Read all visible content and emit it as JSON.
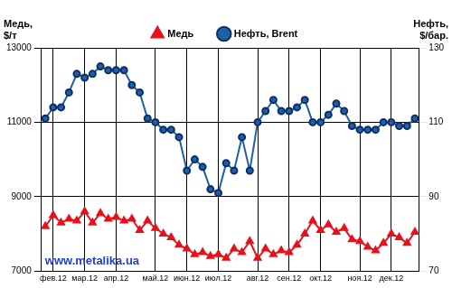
{
  "chart_data": {
    "type": "line",
    "categories": [
      null,
      "фев.12",
      null,
      null,
      null,
      "мар.12",
      null,
      null,
      null,
      "апр.12",
      null,
      null,
      null,
      null,
      "май.12",
      null,
      null,
      null,
      "июн.12",
      null,
      null,
      null,
      "июл.12",
      null,
      null,
      null,
      null,
      "авг.12",
      null,
      null,
      null,
      "сен.12",
      null,
      null,
      null,
      "окт.12",
      null,
      null,
      null,
      null,
      "ноя.12",
      null,
      null,
      null,
      "дек.12",
      null,
      null,
      null
    ],
    "series": [
      {
        "name": "Медь",
        "color": "#e8101a",
        "marker": "triangle",
        "values": [
          8200,
          8500,
          8300,
          8400,
          8350,
          8600,
          8300,
          8550,
          8400,
          8450,
          8350,
          8400,
          8100,
          8350,
          8150,
          8000,
          7900,
          7700,
          7600,
          7450,
          7500,
          7400,
          7450,
          7350,
          7600,
          7500,
          7800,
          7350,
          7600,
          7450,
          7550,
          7500,
          7700,
          8000,
          8350,
          8100,
          8250,
          8050,
          8150,
          7850,
          7800,
          7650,
          7550,
          7750,
          8000,
          7900,
          7750,
          8050
        ]
      },
      {
        "name": "Нефть, Brent",
        "color": "#1f5fa8",
        "marker": "circle",
        "axis": "y2",
        "values": [
          111,
          114,
          114,
          118,
          123,
          122,
          123,
          125,
          124,
          124,
          124,
          120,
          118,
          111,
          110,
          108,
          108,
          106,
          97,
          100,
          98,
          92,
          91,
          99,
          97,
          106,
          97,
          110,
          113,
          116,
          113,
          113,
          114,
          116,
          110,
          110,
          112,
          115,
          113,
          109,
          108,
          108,
          108,
          110,
          110,
          109,
          109,
          111
        ]
      }
    ],
    "y_label": "Медь, $/т",
    "y2_label": "Нефть, $/бар.",
    "ylim": [
      7000,
      13000
    ],
    "yticks": [
      7000,
      9000,
      11000,
      13000
    ],
    "y2lim": [
      70,
      130
    ],
    "y2ticks": [
      70,
      90,
      110,
      130
    ],
    "grid": true,
    "legend": "top",
    "annotation": "www.metalika.ua"
  }
}
